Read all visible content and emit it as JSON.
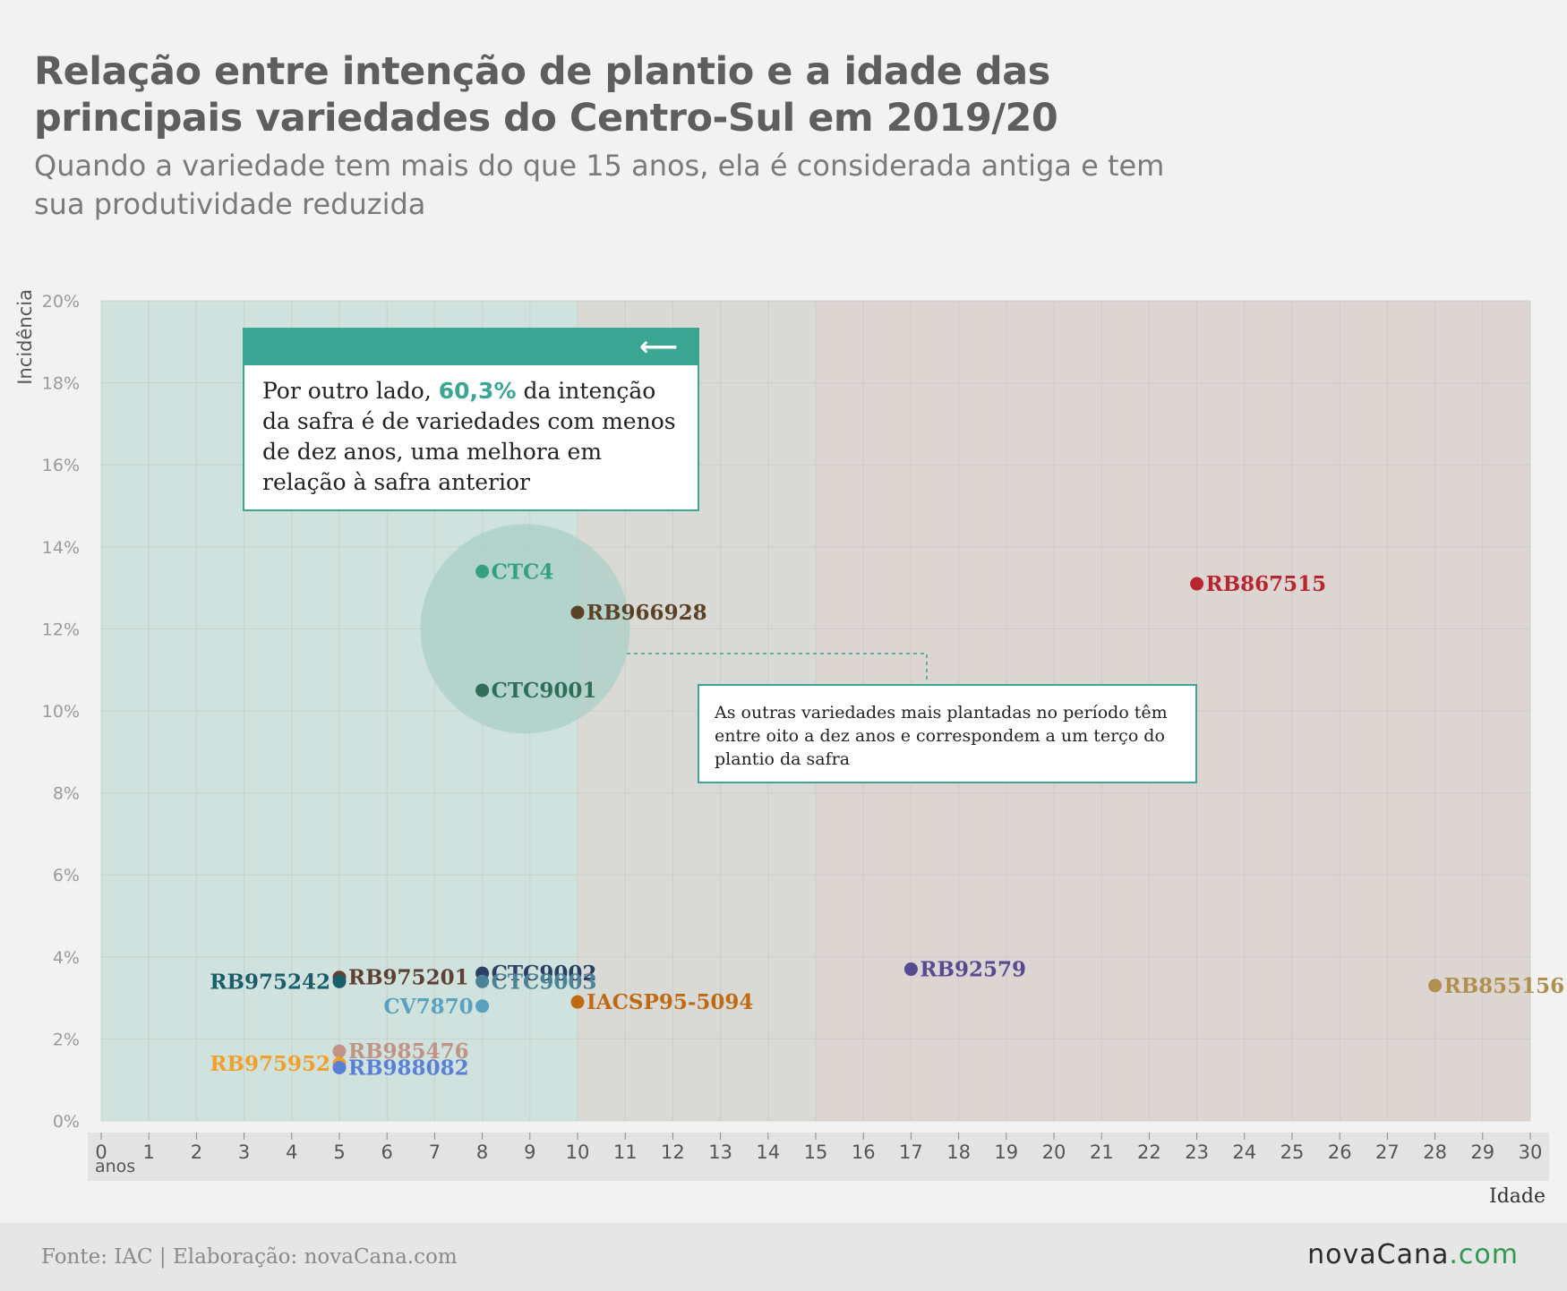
{
  "header": {
    "title_line1": "Relação entre intenção de plantio e a idade das",
    "title_line2": "principais variedades do Centro-Sul em 2019/20",
    "subtitle_line1": "Quando a variedade tem mais do que 15 anos, ela é considerada antiga e tem",
    "subtitle_line2": "sua produtividade reduzida"
  },
  "callout_main": {
    "text_before": "Por outro lado, ",
    "highlight": "60,3%",
    "text_after": " da intenção da safra é de variedades com menos de dez anos, uma melhora em relação à safra anterior",
    "highlight_color": "#3aa693"
  },
  "callout_note": {
    "text": "As outras variedades mais plantadas no período têm entre oito a dez anos e correspondem a um terço do plantio da safra"
  },
  "footer": {
    "source": "Fonte: IAC | Elaboração: novaCana.com",
    "logo_text": "nova",
    "logo_text2": "Cana",
    "logo_dot": ".",
    "logo_com": "com"
  },
  "chart_data": {
    "type": "scatter",
    "ylabel": "Incidência",
    "xlabel": "Idade",
    "x_unit_label": "anos",
    "xlim": [
      0,
      30
    ],
    "ylim": [
      0,
      20
    ],
    "x_ticks": [
      0,
      1,
      2,
      3,
      4,
      5,
      6,
      7,
      8,
      9,
      10,
      11,
      12,
      13,
      14,
      15,
      16,
      17,
      18,
      19,
      20,
      21,
      22,
      23,
      24,
      25,
      26,
      27,
      28,
      29,
      30
    ],
    "y_ticks": [
      0,
      2,
      4,
      6,
      8,
      10,
      12,
      14,
      16,
      18,
      20
    ],
    "y_tick_suffix": "%",
    "zones": [
      {
        "from": 0,
        "to": 10,
        "color": "#cfe2dd"
      },
      {
        "from": 10,
        "to": 15,
        "color": "#d9dad5"
      },
      {
        "from": 15,
        "to": 30,
        "color": "#ddd5d2"
      }
    ],
    "highlight_circle": {
      "x": 8.9,
      "y": 12,
      "color": "#aacfc5"
    },
    "grid": true,
    "points": [
      {
        "name": "CTC4",
        "x": 8,
        "y": 13.4,
        "color": "#34a07e",
        "label_side": "right"
      },
      {
        "name": "RB966928",
        "x": 10,
        "y": 12.4,
        "color": "#5a4226",
        "label_side": "right"
      },
      {
        "name": "CTC9001",
        "x": 8,
        "y": 10.5,
        "color": "#2f6e58",
        "label_side": "right"
      },
      {
        "name": "RB867515",
        "x": 23,
        "y": 13.1,
        "color": "#b8272f",
        "label_side": "right"
      },
      {
        "name": "RB975201",
        "x": 5,
        "y": 3.5,
        "color": "#5e4034",
        "label_side": "right"
      },
      {
        "name": "RB975242",
        "x": 5,
        "y": 3.4,
        "color": "#1b5e6b",
        "label_side": "left"
      },
      {
        "name": "CTC9002",
        "x": 8,
        "y": 3.6,
        "color": "#2d3f62",
        "label_side": "right"
      },
      {
        "name": "CTC9003",
        "x": 8,
        "y": 3.4,
        "color": "#4a8296",
        "label_side": "right"
      },
      {
        "name": "CV7870",
        "x": 8,
        "y": 2.8,
        "color": "#5aa0bf",
        "label_side": "left"
      },
      {
        "name": "IACSP95-5094",
        "x": 10,
        "y": 2.9,
        "color": "#c06b13",
        "label_side": "right"
      },
      {
        "name": "RB92579",
        "x": 17,
        "y": 3.7,
        "color": "#564a94",
        "label_side": "right"
      },
      {
        "name": "RB855156",
        "x": 28,
        "y": 3.3,
        "color": "#b08f50",
        "label_side": "right"
      },
      {
        "name": "RB985476",
        "x": 5,
        "y": 1.7,
        "color": "#c19384",
        "label_side": "right"
      },
      {
        "name": "RB975952",
        "x": 5,
        "y": 1.4,
        "color": "#f0a02b",
        "label_side": "left"
      },
      {
        "name": "RB988082",
        "x": 5,
        "y": 1.3,
        "color": "#5a7fd6",
        "label_side": "right"
      }
    ]
  }
}
